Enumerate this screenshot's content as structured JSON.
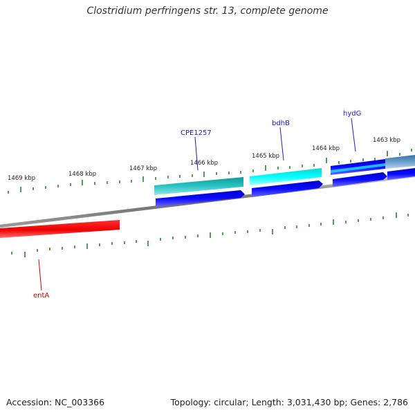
{
  "title": "Clostridium perfringens str. 13, complete genome",
  "footer": {
    "accession": "Accession: NC_003366",
    "summary": "Topology: circular; Length: 3,031,430 bp; Genes: 2,786"
  },
  "colors": {
    "backbone": "#8a8a8a",
    "tick": "#1a7a1a",
    "tick_label": "#222222",
    "gene_label_blue": "#1a1acc",
    "gene_label_red": "#cc0000",
    "red_feature": "#ff0000",
    "teal_feature": "#20b2b2",
    "cyan_feature": "#00f0f0",
    "blue_feature": "#0000ee",
    "steel_feature": "#4682b4"
  },
  "tick_labels": [
    "1469 kbp",
    "1468 kbp",
    "1467 kbp",
    "1466 kbp",
    "1465 kbp",
    "1464 kbp",
    "1463 kbp"
  ],
  "gene_labels": [
    {
      "name": "CPE1257",
      "color": "blue"
    },
    {
      "name": "bdhB",
      "color": "blue"
    },
    {
      "name": "hydG",
      "color": "blue"
    },
    {
      "name": "entA",
      "color": "red"
    }
  ]
}
